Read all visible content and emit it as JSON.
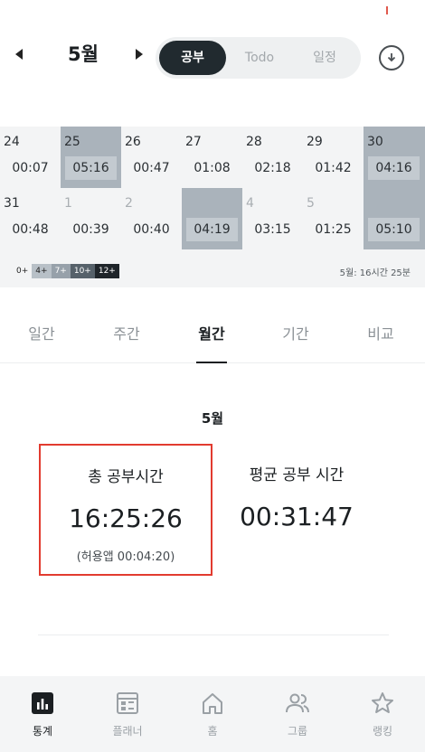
{
  "header": {
    "month_label": "5월",
    "segments": [
      "공부",
      "Todo",
      "일정"
    ],
    "active_segment": "공부"
  },
  "calendar": {
    "rows": [
      [
        {
          "day": "24",
          "time": "00:07"
        },
        {
          "day": "25",
          "time": "05:16",
          "level": 1
        },
        {
          "day": "26",
          "time": "00:47"
        },
        {
          "day": "27",
          "time": "01:08"
        },
        {
          "day": "28",
          "time": "02:18"
        },
        {
          "day": "29",
          "time": "01:42"
        },
        {
          "day": "30",
          "time": "04:16",
          "level": 1
        }
      ],
      [
        {
          "day": "31",
          "time": "00:48"
        },
        {
          "day": "1",
          "time": "00:39"
        },
        {
          "day": "2",
          "time": "00:40"
        },
        {
          "day": "",
          "time": "04:19",
          "level": 1
        },
        {
          "day": "4",
          "time": "03:15"
        },
        {
          "day": "5",
          "time": "01:25"
        },
        {
          "day": "",
          "time": "05:10",
          "level": 1
        }
      ]
    ]
  },
  "legend": {
    "levels": [
      "0+",
      "4+",
      "7+",
      "10+",
      "12+"
    ],
    "summary": "5월: 16시간 25분"
  },
  "tabs": {
    "items": [
      "일간",
      "주간",
      "월간",
      "기간",
      "비교"
    ],
    "active": "월간"
  },
  "stats": {
    "month": "5월",
    "total_title": "총 공부시간",
    "total_value": "16:25:26",
    "total_sub": "(허용앱 00:04:20)",
    "average_title": "평균 공부 시간",
    "average_value": "00:31:47"
  },
  "nav": {
    "items": [
      {
        "label": "통계",
        "icon": "stats-icon"
      },
      {
        "label": "플래너",
        "icon": "planner-icon"
      },
      {
        "label": "홈",
        "icon": "home-icon"
      },
      {
        "label": "그룹",
        "icon": "group-icon"
      },
      {
        "label": "랭킹",
        "icon": "star-icon"
      }
    ],
    "active": "통계"
  },
  "colors": {
    "accent_dark": "#212a2f",
    "highlight_border": "#e23b2f",
    "level1_fill": "#aab3bb"
  }
}
